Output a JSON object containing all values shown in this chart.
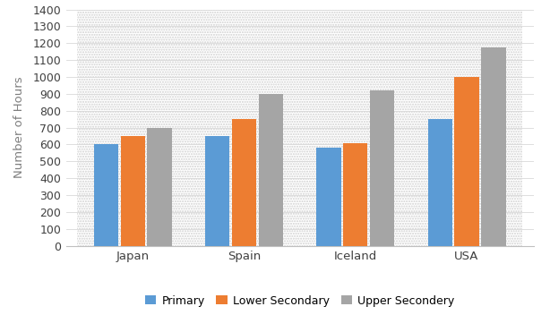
{
  "countries": [
    "Japan",
    "Spain",
    "Iceland",
    "USA"
  ],
  "series": {
    "Primary": [
      600,
      650,
      580,
      750
    ],
    "Lower Secondary": [
      650,
      750,
      610,
      1000
    ],
    "Upper Secondery": [
      700,
      900,
      920,
      1175
    ]
  },
  "colors": {
    "Primary": "#5B9BD5",
    "Lower Secondary": "#ED7D31",
    "Upper Secondery": "#A5A5A5"
  },
  "ylabel": "Number of Hours",
  "ylabel_color": "#7F7F7F",
  "ylim": [
    0,
    1400
  ],
  "yticks": [
    0,
    100,
    200,
    300,
    400,
    500,
    600,
    700,
    800,
    900,
    1000,
    1100,
    1200,
    1300,
    1400
  ],
  "legend_labels": [
    "Primary",
    "Lower Secondary",
    "Upper Secondery"
  ],
  "bar_width": 0.22,
  "background_color": "#ffffff",
  "plot_bg_color": "#ffffff",
  "hatch_color": "#D0D0D0",
  "grid_color": "#D9D9D9"
}
